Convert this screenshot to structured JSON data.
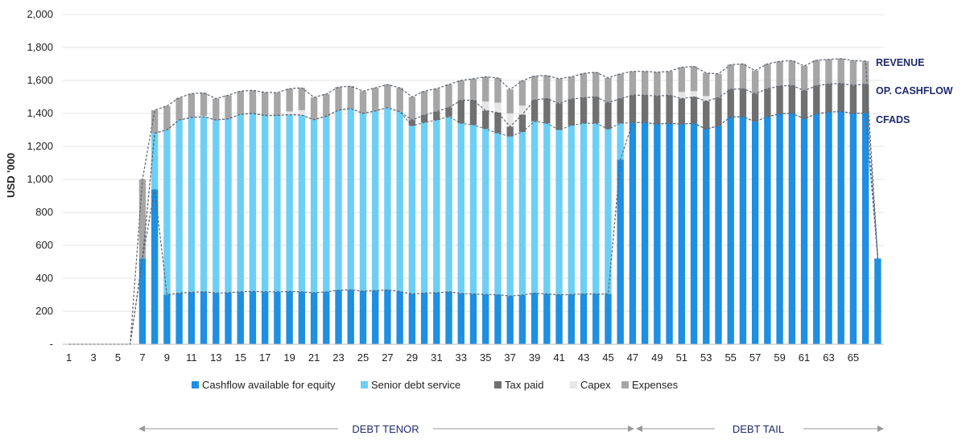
{
  "chart_data": {
    "type": "bar",
    "stacked": true,
    "title": "",
    "xlabel": "",
    "ylabel": "USD '000",
    "ylim": [
      0,
      2000
    ],
    "yticks": [
      0,
      200,
      400,
      600,
      800,
      1000,
      1200,
      1400,
      1600,
      1800,
      2000
    ],
    "ytick_labels": [
      "-",
      "200",
      "400",
      "600",
      "800",
      "1,000",
      "1,200",
      "1,400",
      "1,600",
      "1,800",
      "2,000"
    ],
    "x": [
      1,
      2,
      3,
      4,
      5,
      6,
      7,
      8,
      9,
      10,
      11,
      12,
      13,
      14,
      15,
      16,
      17,
      18,
      19,
      20,
      21,
      22,
      23,
      24,
      25,
      26,
      27,
      28,
      29,
      30,
      31,
      32,
      33,
      34,
      35,
      36,
      37,
      38,
      39,
      40,
      41,
      42,
      43,
      44,
      45,
      46,
      47,
      48,
      49,
      50,
      51,
      52,
      53,
      54,
      55,
      56,
      57,
      58,
      59,
      60,
      61,
      62,
      63,
      64,
      65,
      66,
      67
    ],
    "xtick_labels": [
      "1",
      "3",
      "5",
      "7",
      "9",
      "11",
      "13",
      "15",
      "17",
      "19",
      "21",
      "23",
      "25",
      "27",
      "29",
      "31",
      "33",
      "35",
      "37",
      "39",
      "41",
      "43",
      "45",
      "47",
      "49",
      "51",
      "53",
      "55",
      "57",
      "59",
      "61",
      "63",
      "65"
    ],
    "grid": true,
    "legend_position": "bottom",
    "series": [
      {
        "name": "Cashflow available for equity",
        "color": "#1e8fe1",
        "values": [
          0,
          0,
          0,
          0,
          0,
          0,
          520,
          940,
          300,
          310,
          315,
          318,
          310,
          312,
          318,
          320,
          318,
          318,
          320,
          318,
          312,
          318,
          328,
          330,
          322,
          325,
          330,
          320,
          305,
          310,
          312,
          318,
          308,
          305,
          302,
          300,
          292,
          298,
          310,
          305,
          300,
          302,
          305,
          305,
          305,
          1120,
          1345,
          1345,
          1335,
          1340,
          1335,
          1340,
          1305,
          1325,
          1378,
          1380,
          1350,
          1380,
          1398,
          1400,
          1368,
          1398,
          1408,
          1412,
          1400,
          1402,
          520
        ]
      },
      {
        "name": "Senior debt service",
        "color": "#6dcff6",
        "values": [
          0,
          0,
          0,
          0,
          0,
          0,
          0,
          340,
          1000,
          1050,
          1060,
          1062,
          1050,
          1055,
          1077,
          1080,
          1070,
          1070,
          1072,
          1072,
          1050,
          1065,
          1092,
          1100,
          1078,
          1090,
          1105,
          1090,
          1020,
          1035,
          1048,
          1062,
          1032,
          1025,
          1005,
          980,
          968,
          990,
          1042,
          1035,
          1000,
          1025,
          1035,
          1035,
          1000,
          220,
          0,
          0,
          0,
          0,
          0,
          0,
          0,
          0,
          0,
          0,
          0,
          0,
          0,
          0,
          0,
          0,
          0,
          0,
          0,
          0,
          0
        ]
      },
      {
        "name": "Tax paid",
        "color": "#707070",
        "values": [
          0,
          0,
          0,
          0,
          0,
          0,
          0,
          0,
          0,
          0,
          0,
          0,
          0,
          0,
          0,
          0,
          0,
          0,
          0,
          0,
          0,
          0,
          0,
          0,
          0,
          0,
          0,
          0,
          35,
          45,
          50,
          55,
          140,
          150,
          110,
          125,
          60,
          105,
          130,
          150,
          160,
          160,
          155,
          160,
          160,
          150,
          165,
          165,
          170,
          170,
          155,
          160,
          170,
          170,
          168,
          170,
          170,
          170,
          168,
          170,
          170,
          170,
          170,
          170,
          170,
          175,
          0
        ]
      },
      {
        "name": "Capex",
        "color": "#e6e6e6",
        "values": [
          0,
          0,
          0,
          0,
          0,
          0,
          0,
          0,
          0,
          0,
          0,
          5,
          0,
          0,
          0,
          0,
          0,
          0,
          20,
          30,
          0,
          0,
          0,
          0,
          0,
          0,
          0,
          0,
          0,
          0,
          0,
          0,
          0,
          0,
          55,
          60,
          80,
          55,
          0,
          0,
          0,
          0,
          0,
          0,
          0,
          0,
          0,
          0,
          0,
          0,
          40,
          35,
          30,
          0,
          0,
          0,
          0,
          0,
          0,
          0,
          0,
          0,
          0,
          0,
          0,
          0,
          0
        ]
      },
      {
        "name": "Expenses",
        "color": "#a6a6a6",
        "values": [
          0,
          0,
          0,
          0,
          0,
          0,
          480,
          140,
          145,
          135,
          145,
          140,
          130,
          143,
          140,
          140,
          140,
          138,
          138,
          135,
          135,
          135,
          140,
          135,
          135,
          140,
          140,
          145,
          140,
          145,
          140,
          140,
          120,
          130,
          150,
          150,
          145,
          150,
          145,
          140,
          150,
          135,
          148,
          150,
          150,
          150,
          145,
          145,
          145,
          145,
          150,
          150,
          140,
          145,
          150,
          150,
          140,
          150,
          150,
          150,
          150,
          155,
          150,
          150,
          150,
          140,
          0
        ]
      }
    ],
    "line_annotations": [
      "REVENUE",
      "OP. CASHFLOW",
      "CFADS"
    ],
    "periods": [
      {
        "label": "DEBT TENOR",
        "from": 7,
        "to": 47
      },
      {
        "label": "DEBT TAIL",
        "from": 47,
        "to": 67
      }
    ]
  }
}
